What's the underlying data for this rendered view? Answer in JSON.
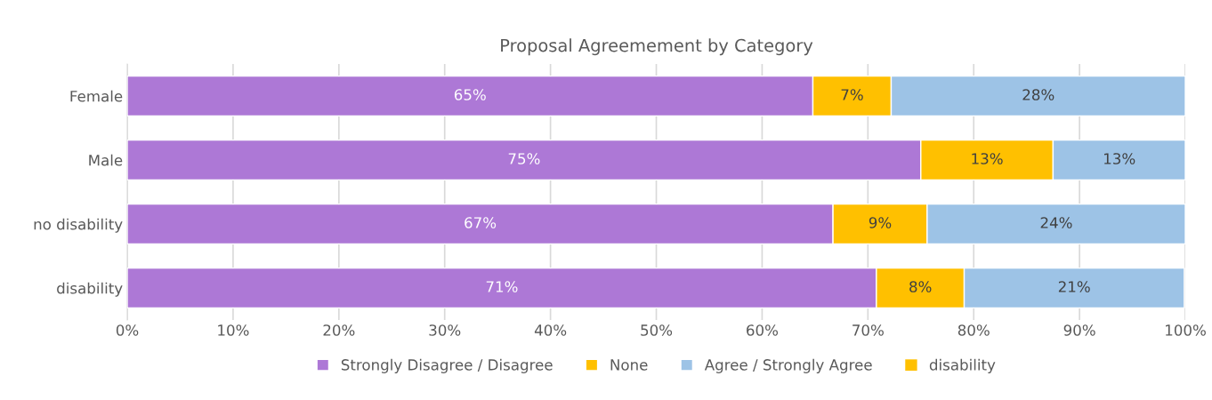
{
  "chart_data": {
    "type": "bar",
    "orientation": "horizontal",
    "stacked": true,
    "title": "Proposal Agreemement by Category",
    "categories": [
      "Female",
      "Male",
      "no disability",
      "disability"
    ],
    "series": [
      {
        "name": "Strongly Disagree / Disagree",
        "color": "#ad78d6",
        "values": [
          64.8,
          75,
          66.7,
          70.8
        ],
        "value_labels": [
          "65%",
          "75%",
          "67%",
          "71%"
        ]
      },
      {
        "name": "None",
        "color": "#ffc000",
        "values": [
          7.4,
          12.5,
          8.9,
          8.3
        ],
        "value_labels": [
          "7%",
          "13%",
          "9%",
          "8%"
        ]
      },
      {
        "name": "Agree / Strongly Agree",
        "color": "#9dc3e6",
        "values": [
          27.8,
          12.5,
          24.4,
          20.8
        ],
        "value_labels": [
          "28%",
          "13%",
          "24%",
          "21%"
        ]
      },
      {
        "name": "disability",
        "color": "#ffc000",
        "values": [
          null,
          null,
          null,
          null
        ]
      }
    ],
    "xlim": [
      0,
      100
    ],
    "xticks": [
      {
        "value": 0,
        "label": "0%"
      },
      {
        "value": 10,
        "label": "10%"
      },
      {
        "value": 20,
        "label": "20%"
      },
      {
        "value": 30,
        "label": "30%"
      },
      {
        "value": 40,
        "label": "40%"
      },
      {
        "value": 50,
        "label": "50%"
      },
      {
        "value": 60,
        "label": "60%"
      },
      {
        "value": 70,
        "label": "70%"
      },
      {
        "value": 80,
        "label": "80%"
      },
      {
        "value": 90,
        "label": "90%"
      },
      {
        "value": 100,
        "label": "100%"
      }
    ],
    "grid": "x",
    "legend": "bottom"
  }
}
